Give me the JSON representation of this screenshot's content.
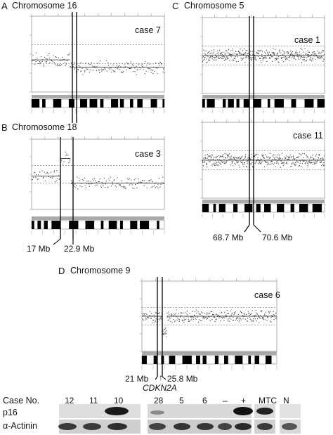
{
  "panels": [
    {
      "letter": "A",
      "chromosome": "Chromosome 16",
      "case": "case 7"
    },
    {
      "letter": "B",
      "chromosome": "Chromosome 18",
      "case": "case 3",
      "breakpoints": [
        "17 Mb",
        "22.9 Mb"
      ]
    },
    {
      "letter": "C",
      "chromosome": "Chromosome 5",
      "cases": [
        "case 1",
        "case 11"
      ],
      "breakpoints": [
        "68.7 Mb",
        "70.6 Mb"
      ]
    },
    {
      "letter": "D",
      "chromosome": "Chromosome 9",
      "case": "case 6",
      "breakpoints": [
        "21 Mb",
        "25.8 Mb"
      ],
      "gene": "CDKN2A",
      "gene_arrow": "↑"
    }
  ],
  "blot": {
    "case_label": "Case No.",
    "lanes": [
      "12",
      "11",
      "10",
      "28",
      "5",
      "6",
      "–",
      "+",
      "MTC",
      "N"
    ],
    "rows": [
      "p16",
      "α-Actinin"
    ]
  },
  "chart_data": [
    {
      "type": "scatter",
      "panel": "A",
      "title": "Chromosome 16",
      "label": "case 7",
      "ylim": [
        -2,
        2
      ],
      "xlim": [
        0,
        90
      ],
      "grid": true,
      "segments": [
        {
          "start": 0,
          "end": 26,
          "value": -0.3
        },
        {
          "start": 26,
          "end": 90,
          "value": -0.7
        }
      ]
    },
    {
      "type": "scatter",
      "panel": "B",
      "title": "Chromosome 18",
      "label": "case 3",
      "ylim": [
        -2,
        2
      ],
      "xlim": [
        0,
        78
      ],
      "grid": true,
      "breakpoints_mb": [
        17,
        22.9
      ],
      "segments": [
        {
          "start": 0,
          "end": 17,
          "value": -0.1
        },
        {
          "start": 17,
          "end": 22.9,
          "value": 0.9
        },
        {
          "start": 22.9,
          "end": 78,
          "value": -0.5
        }
      ]
    },
    {
      "type": "scatter",
      "panel": "C",
      "title": "Chromosome 5",
      "label": "case 1",
      "ylim": [
        -2,
        2
      ],
      "xlim": [
        0,
        181
      ],
      "grid": true,
      "breakpoints_mb": [
        68.7,
        70.6
      ],
      "segments": [
        {
          "start": 0,
          "end": 181,
          "value": 0.0
        }
      ]
    },
    {
      "type": "scatter",
      "panel": "C",
      "title": "Chromosome 5",
      "label": "case 11",
      "ylim": [
        -2,
        2
      ],
      "xlim": [
        0,
        181
      ],
      "grid": true,
      "breakpoints_mb": [
        68.7,
        70.6
      ],
      "segments": [
        {
          "start": 0,
          "end": 181,
          "value": 0.0
        }
      ]
    },
    {
      "type": "scatter",
      "panel": "D",
      "title": "Chromosome 9",
      "label": "case 6",
      "ylim": [
        -2,
        2
      ],
      "xlim": [
        0,
        140
      ],
      "grid": true,
      "breakpoints_mb": [
        21,
        25.8
      ],
      "segments": [
        {
          "start": 0,
          "end": 21,
          "value": 0.0
        },
        {
          "start": 21,
          "end": 25.8,
          "value": -1.0
        },
        {
          "start": 25.8,
          "end": 140,
          "value": 0.0
        }
      ]
    }
  ]
}
